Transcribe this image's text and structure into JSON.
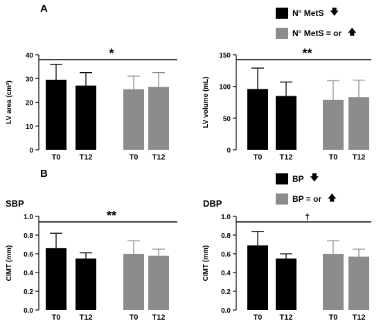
{
  "panels": {
    "a": "A",
    "b": "B"
  },
  "colors": {
    "group1": "#000000",
    "group2": "#8c8c8c"
  },
  "legend_a": [
    {
      "label": "N° MetS",
      "arrow": "down-arrow-icon",
      "glyph": "🡇"
    },
    {
      "label": "N° MetS = or",
      "arrow": "up-arrow-icon",
      "glyph": "🡅"
    }
  ],
  "legend_b": [
    {
      "label": "BP",
      "arrow": "down-arrow-icon",
      "glyph": "🡇"
    },
    {
      "label": "BP = or",
      "arrow": "up-arrow-icon",
      "glyph": "🡅"
    }
  ],
  "chart_data": [
    {
      "id": "lv-area",
      "type": "bar",
      "title": "",
      "ylabel": "LV area (cm²)",
      "ylim": [
        0,
        40
      ],
      "yticks": [
        0,
        10,
        20,
        30,
        40
      ],
      "categories": [
        "T0",
        "T12",
        "T0",
        "T12"
      ],
      "groups": [
        0,
        0,
        1,
        1
      ],
      "values": [
        29.5,
        27,
        25.5,
        26.5
      ],
      "errors": [
        6.5,
        5.5,
        5.5,
        6
      ],
      "significance": "*"
    },
    {
      "id": "lv-volume",
      "type": "bar",
      "title": "",
      "ylabel": "LV volume (mL)",
      "ylim": [
        0,
        150
      ],
      "yticks": [
        0,
        50,
        100,
        150
      ],
      "categories": [
        "T0",
        "T12",
        "T0",
        "T12"
      ],
      "groups": [
        0,
        0,
        1,
        1
      ],
      "values": [
        96,
        85,
        79,
        83
      ],
      "errors": [
        33,
        22,
        30,
        27
      ],
      "significance": "**"
    },
    {
      "id": "cimt-sbp",
      "type": "bar",
      "title": "SBP",
      "ylabel": "CIMT (mm)",
      "ylim": [
        0,
        1.0
      ],
      "yticks": [
        "0.0",
        "0.2",
        "0.4",
        "0.6",
        "0.8",
        "1.0"
      ],
      "categories": [
        "T0",
        "T12",
        "T0",
        "T12"
      ],
      "groups": [
        0,
        0,
        1,
        1
      ],
      "values": [
        0.66,
        0.55,
        0.6,
        0.58
      ],
      "errors": [
        0.16,
        0.06,
        0.14,
        0.07
      ],
      "significance": "**"
    },
    {
      "id": "cimt-dbp",
      "type": "bar",
      "title": "DBP",
      "ylabel": "CIMT (mm)",
      "ylim": [
        0,
        1.0
      ],
      "yticks": [
        "0.0",
        "0.2",
        "0.4",
        "0.6",
        "0.8",
        "1.0"
      ],
      "categories": [
        "T0",
        "T12",
        "T0",
        "T12"
      ],
      "groups": [
        0,
        0,
        1,
        1
      ],
      "values": [
        0.69,
        0.55,
        0.6,
        0.57
      ],
      "errors": [
        0.15,
        0.05,
        0.14,
        0.08
      ],
      "significance": "†"
    }
  ]
}
